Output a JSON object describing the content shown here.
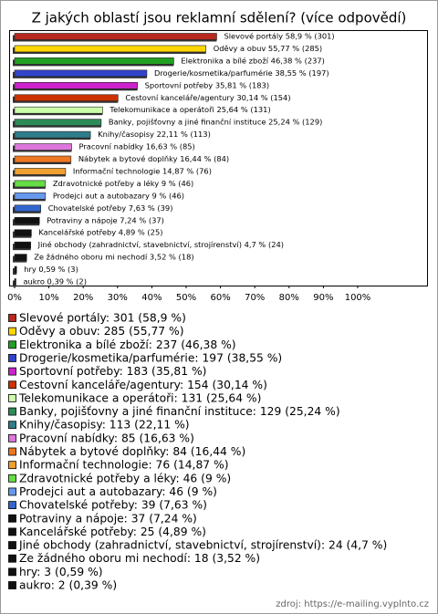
{
  "chart_data": {
    "type": "bar",
    "orientation": "horizontal",
    "title": "Z jakých oblastí jsou reklamní sdělení? (více odpovědí)",
    "bar_labels": [
      "Slevové portály 58,9 % (301)",
      "Oděvy a obuv 55,77 % (285)",
      "Elektronika a bílé zboží 46,38 % (237)",
      "Drogerie/kosmetika/parfumérie 38,55 % (197)",
      "Sportovní potřeby 35,81 % (183)",
      "Cestovní kanceláře/agentury 30,14 % (154)",
      "Telekomunikace a operátoři 25,64 % (131)",
      "Banky, pojišťovny a jiné finanční instituce 25,24 % (129)",
      "Knihy/časopisy 22,11 % (113)",
      "Pracovní nabídky 16,63 % (85)",
      "Nábytek a bytové doplňky 16,44 % (84)",
      "Informační technologie 14,87 % (76)",
      "Zdravotnické potřeby a léky 9 % (46)",
      "Prodejci aut a autobazary 9 % (46)",
      "Chovatelské potřeby 7,63 % (39)",
      "Potraviny a nápoje 7,24 % (37)",
      "Kancelářské potřeby 4,89 % (25)",
      "Jiné obchody (zahradnictví, stavebnictví, strojírenství) 4,7 % (24)",
      "Ze žádného oboru mi nechodí 3,52 % (18)",
      "hry 0,59 % (3)",
      "aukro 0,39 % (2)"
    ],
    "legend_labels": [
      "Slevové portály: 301 (58,9 %)",
      "Oděvy a obuv: 285 (55,77 %)",
      "Elektronika a bílé zboží: 237 (46,38 %)",
      "Drogerie/kosmetika/parfumérie: 197 (38,55 %)",
      "Sportovní potřeby: 183 (35,81 %)",
      "Cestovní kanceláře/agentury: 154 (30,14 %)",
      "Telekomunikace a operátoři: 131 (25,64 %)",
      "Banky, pojišťovny a jiné finanční instituce: 129 (25,24 %)",
      "Knihy/časopisy: 113 (22,11 %)",
      "Pracovní nabídky: 85 (16,63 %)",
      "Nábytek a bytové doplňky: 84 (16,44 %)",
      "Informační technologie: 76 (14,87 %)",
      "Zdravotnické potřeby a léky: 46 (9 %)",
      "Prodejci aut a autobazary: 46 (9 %)",
      "Chovatelské potřeby: 39 (7,63 %)",
      "Potraviny a nápoje: 37 (7,24 %)",
      "Kancelářské potřeby: 25 (4,89 %)",
      "Jiné obchody (zahradnictví, stavebnictví, strojírenství): 24 (4,7 %)",
      "Ze žádného oboru mi nechodí: 18 (3,52 %)",
      "hry: 3 (0,59 %)",
      "aukro: 2 (0,39 %)"
    ],
    "values": [
      58.9,
      55.77,
      46.38,
      38.55,
      35.81,
      30.14,
      25.64,
      25.24,
      22.11,
      16.63,
      16.44,
      14.87,
      9,
      9,
      7.63,
      7.24,
      4.89,
      4.7,
      3.52,
      0.59,
      0.39
    ],
    "colors": [
      "#b8281e",
      "#ffd700",
      "#22a022",
      "#3344cc",
      "#cc22cc",
      "#cc3300",
      "#ccffaa",
      "#2e8b57",
      "#2e7d8a",
      "#dd77dd",
      "#ee7722",
      "#f0a030",
      "#66dd44",
      "#6699ee",
      "#3366cc",
      "#111111",
      "#111111",
      "#111111",
      "#111111",
      "#111111",
      "#111111"
    ],
    "xlim": [
      0,
      120
    ],
    "xticks": [
      {
        "value": 0,
        "label": "0%"
      },
      {
        "value": 10,
        "label": "10%"
      },
      {
        "value": 20,
        "label": "20%"
      },
      {
        "value": 30,
        "label": "30%"
      },
      {
        "value": 40,
        "label": "40%"
      },
      {
        "value": 50,
        "label": "50%"
      },
      {
        "value": 60,
        "label": "60%"
      },
      {
        "value": 70,
        "label": "70%"
      },
      {
        "value": 80,
        "label": "80%"
      },
      {
        "value": 90,
        "label": "90%"
      },
      {
        "value": 100,
        "label": "100%"
      }
    ],
    "source": "zdroj: https://e-mailing.vyplnto.cz"
  }
}
